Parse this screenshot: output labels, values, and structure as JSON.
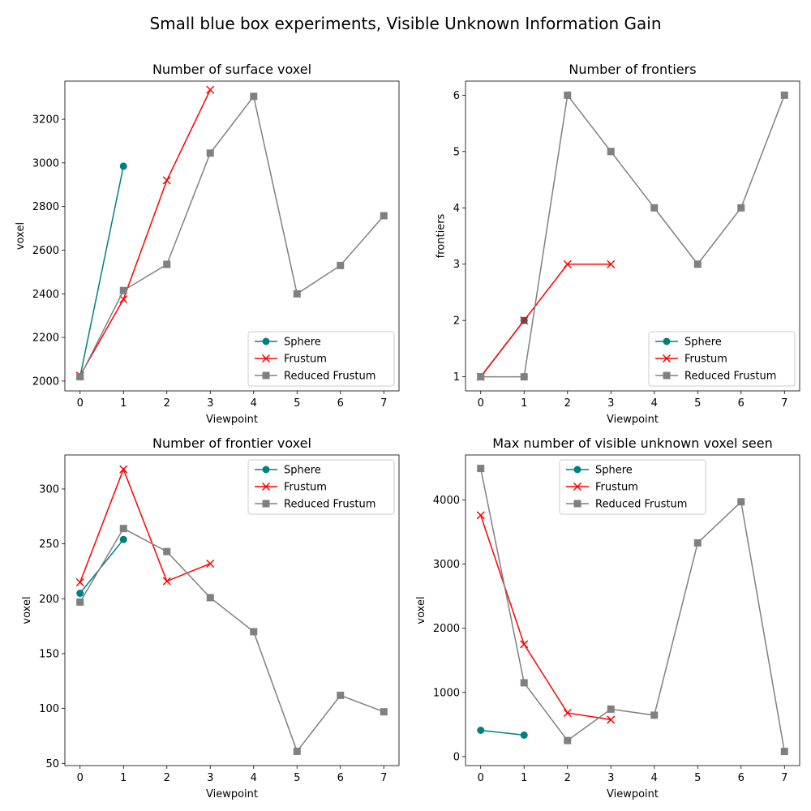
{
  "suptitle": "Small blue box experiments, Visible Unknown Information Gain",
  "series_styles": {
    "Sphere": {
      "color": "#008080",
      "marker": "circle"
    },
    "Frustum": {
      "color": "#ff0000",
      "marker": "x"
    },
    "Reduced Frustum": {
      "color": "#808080",
      "marker": "square"
    }
  },
  "chart_data": [
    {
      "type": "line",
      "title": "Number of surface voxel",
      "xlabel": "Viewpoint",
      "ylabel": "voxel",
      "xlim": [
        -0.35,
        7.35
      ],
      "ylim": [
        1955,
        3375
      ],
      "xticks": [
        0,
        1,
        2,
        3,
        4,
        5,
        6,
        7
      ],
      "yticks": [
        2000,
        2200,
        2400,
        2600,
        2800,
        3000,
        3200
      ],
      "legend": "lower-right",
      "series": [
        {
          "name": "Sphere",
          "x": [
            0,
            1
          ],
          "y": [
            2020,
            2985
          ]
        },
        {
          "name": "Frustum",
          "x": [
            0,
            1,
            2,
            3
          ],
          "y": [
            2025,
            2375,
            2920,
            3335
          ]
        },
        {
          "name": "Reduced Frustum",
          "x": [
            0,
            1,
            2,
            3,
            4,
            5,
            6,
            7
          ],
          "y": [
            2020,
            2415,
            2535,
            3045,
            3305,
            2400,
            2530,
            2758
          ]
        }
      ]
    },
    {
      "type": "line",
      "title": "Number of frontiers",
      "xlabel": "Viewpoint",
      "ylabel": "frontiers",
      "xlim": [
        -0.35,
        7.35
      ],
      "ylim": [
        0.75,
        6.25
      ],
      "xticks": [
        0,
        1,
        2,
        3,
        4,
        5,
        6,
        7
      ],
      "yticks": [
        1,
        2,
        3,
        4,
        5,
        6
      ],
      "legend": "lower-right",
      "series": [
        {
          "name": "Sphere",
          "x": [
            0,
            1
          ],
          "y": [
            1,
            2
          ]
        },
        {
          "name": "Frustum",
          "x": [
            0,
            1,
            2,
            3
          ],
          "y": [
            1,
            2,
            3,
            3
          ]
        },
        {
          "name": "Reduced Frustum",
          "x": [
            0,
            1,
            2,
            3,
            4,
            5,
            6,
            7
          ],
          "y": [
            1,
            1,
            6,
            5,
            4,
            3,
            4,
            6
          ]
        }
      ]
    },
    {
      "type": "line",
      "title": "Number of frontier voxel",
      "xlabel": "Viewpoint",
      "ylabel": "voxel",
      "xlim": [
        -0.35,
        7.35
      ],
      "ylim": [
        48,
        331
      ],
      "xticks": [
        0,
        1,
        2,
        3,
        4,
        5,
        6,
        7
      ],
      "yticks": [
        50,
        100,
        150,
        200,
        250,
        300
      ],
      "legend": "upper-right",
      "series": [
        {
          "name": "Sphere",
          "x": [
            0,
            1
          ],
          "y": [
            205,
            254
          ]
        },
        {
          "name": "Frustum",
          "x": [
            0,
            1,
            2,
            3
          ],
          "y": [
            215,
            318,
            216,
            232
          ]
        },
        {
          "name": "Reduced Frustum",
          "x": [
            0,
            1,
            2,
            3,
            4,
            5,
            6,
            7
          ],
          "y": [
            197,
            264,
            243,
            201,
            170,
            61,
            112,
            97
          ]
        }
      ]
    },
    {
      "type": "line",
      "title": "Max number of visible unknown voxel seen",
      "xlabel": "Viewpoint",
      "ylabel": "voxel",
      "xlim": [
        -0.35,
        7.35
      ],
      "ylim": [
        -140,
        4700
      ],
      "xticks": [
        0,
        1,
        2,
        3,
        4,
        5,
        6,
        7
      ],
      "yticks": [
        0,
        1000,
        2000,
        3000,
        4000
      ],
      "legend": "upper-center",
      "series": [
        {
          "name": "Sphere",
          "x": [
            0,
            1
          ],
          "y": [
            410,
            335
          ]
        },
        {
          "name": "Frustum",
          "x": [
            0,
            1,
            2,
            3
          ],
          "y": [
            3760,
            1750,
            680,
            575
          ]
        },
        {
          "name": "Reduced Frustum",
          "x": [
            0,
            1,
            2,
            3,
            4,
            5,
            6,
            7
          ],
          "y": [
            4490,
            1150,
            250,
            740,
            645,
            3330,
            3970,
            80
          ]
        }
      ]
    }
  ]
}
